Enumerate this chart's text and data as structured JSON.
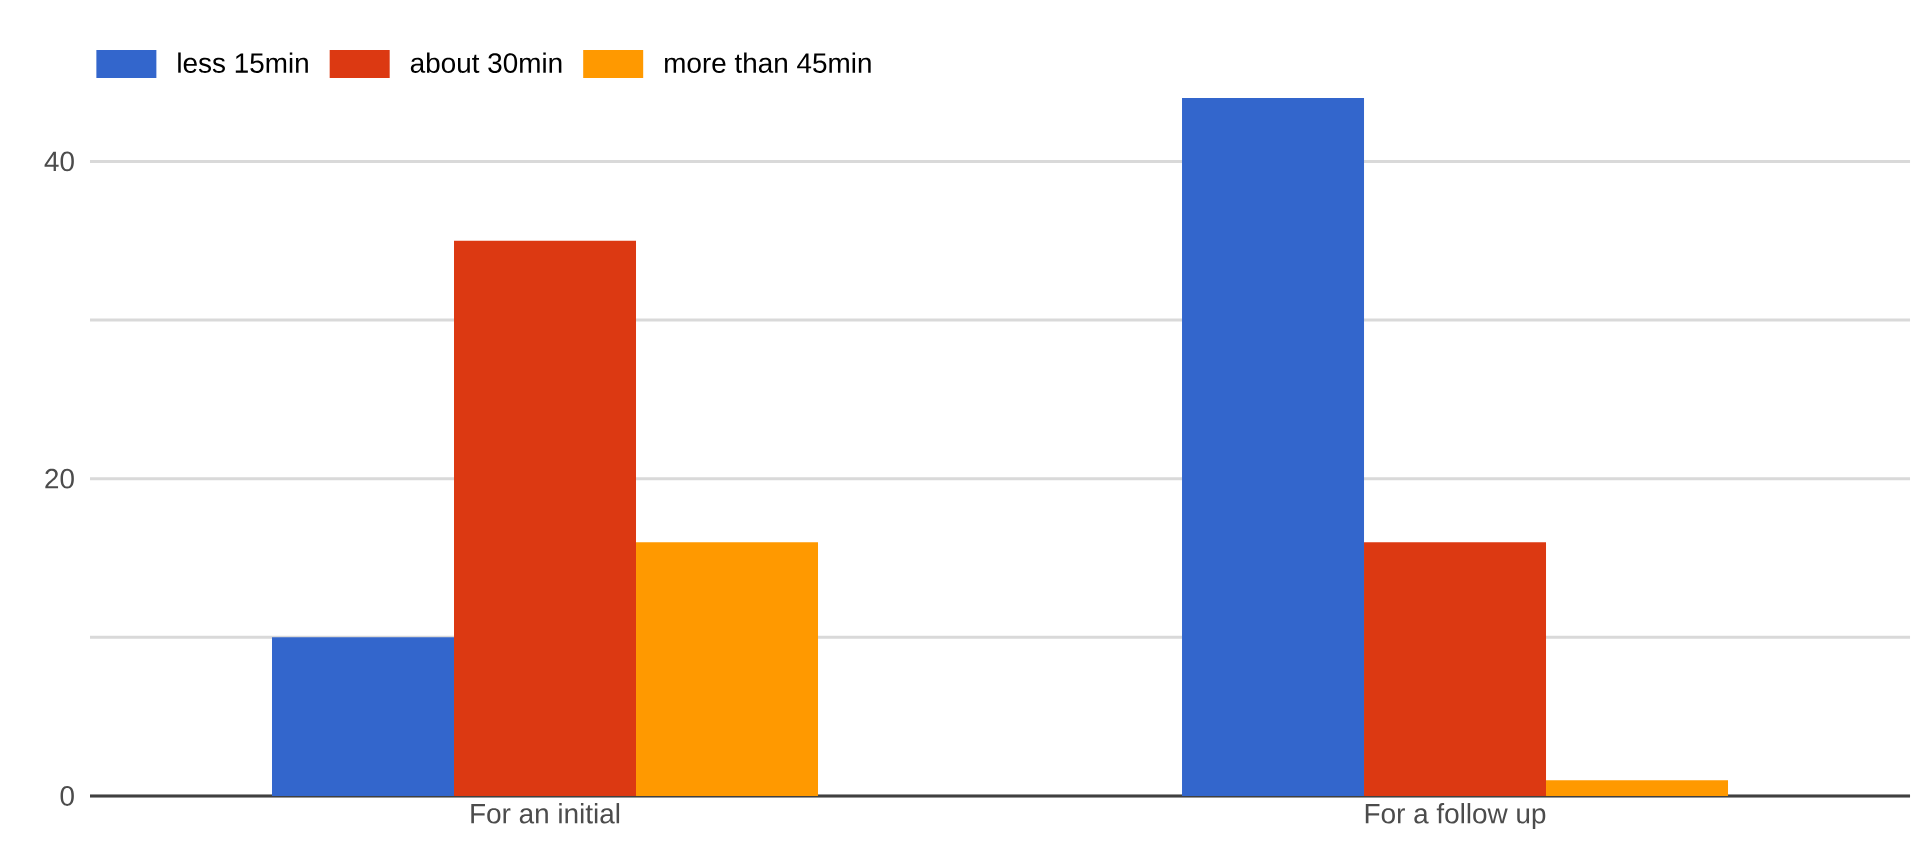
{
  "chart_data": {
    "type": "bar",
    "categories": [
      "For an initial",
      "For a follow up"
    ],
    "series": [
      {
        "name": "less 15min",
        "color": "#3366cc",
        "values": [
          10,
          44
        ]
      },
      {
        "name": "about 30min",
        "color": "#dc3912",
        "values": [
          35,
          16
        ]
      },
      {
        "name": "more than 45min",
        "color": "#ff9900",
        "values": [
          16,
          1
        ]
      }
    ],
    "ylim": [
      0,
      44
    ],
    "yticks": [
      0,
      {
        "value": 10,
        "label": null
      },
      20,
      {
        "value": 30,
        "label": null
      },
      40
    ],
    "grid": "y",
    "legend": "top left"
  }
}
